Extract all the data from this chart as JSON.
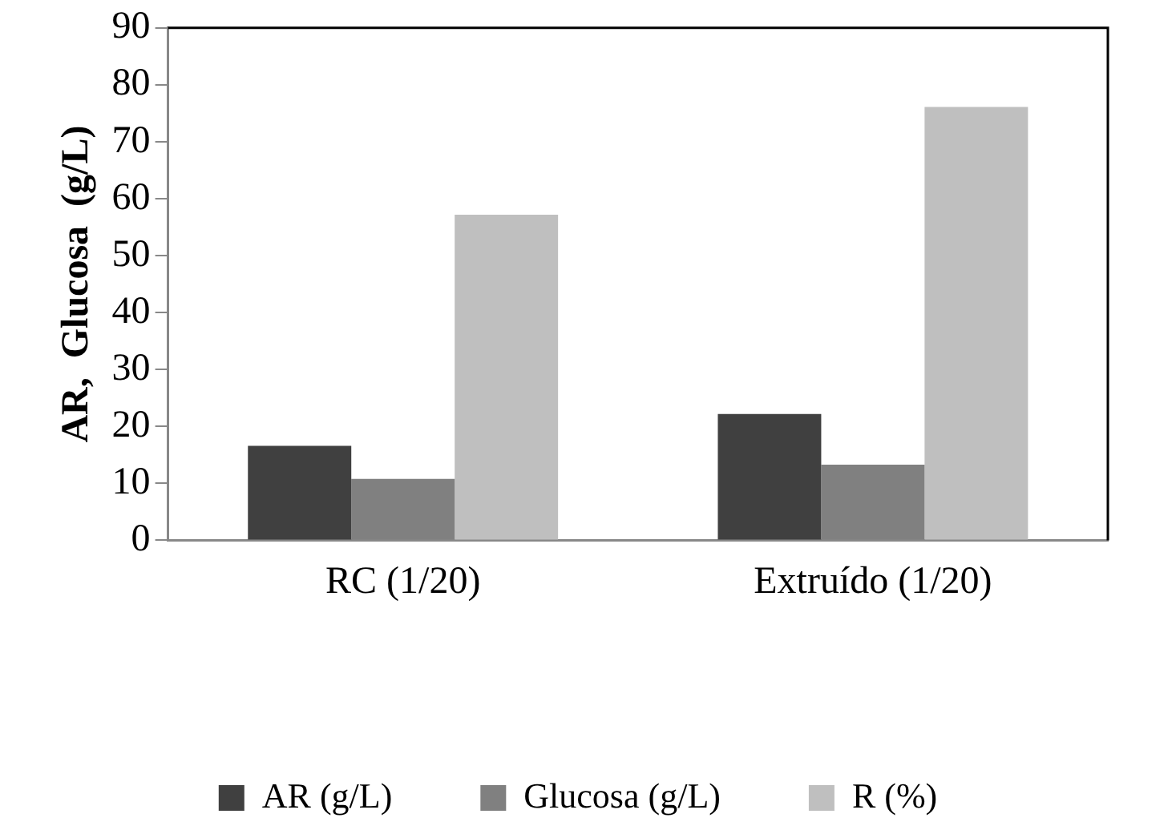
{
  "chart_data": {
    "type": "bar",
    "ylabel": "AR,  Glucosa  (g/L)",
    "categories": [
      "RC (1/20)",
      "Extruído (1/20)"
    ],
    "series": [
      {
        "name": "AR (g/L)",
        "color": "#404040",
        "values": [
          16.6,
          22.2
        ]
      },
      {
        "name": "Glucosa (g/L)",
        "color": "#808080",
        "values": [
          10.8,
          13.3
        ]
      },
      {
        "name": "R (%)",
        "color": "#bfbfbf",
        "values": [
          57.2,
          76.1
        ]
      }
    ],
    "ylim": [
      0,
      90
    ],
    "yticks": [
      0,
      10,
      20,
      30,
      40,
      50,
      60,
      70,
      80,
      90
    ],
    "grid": false,
    "legend": "bottom"
  }
}
